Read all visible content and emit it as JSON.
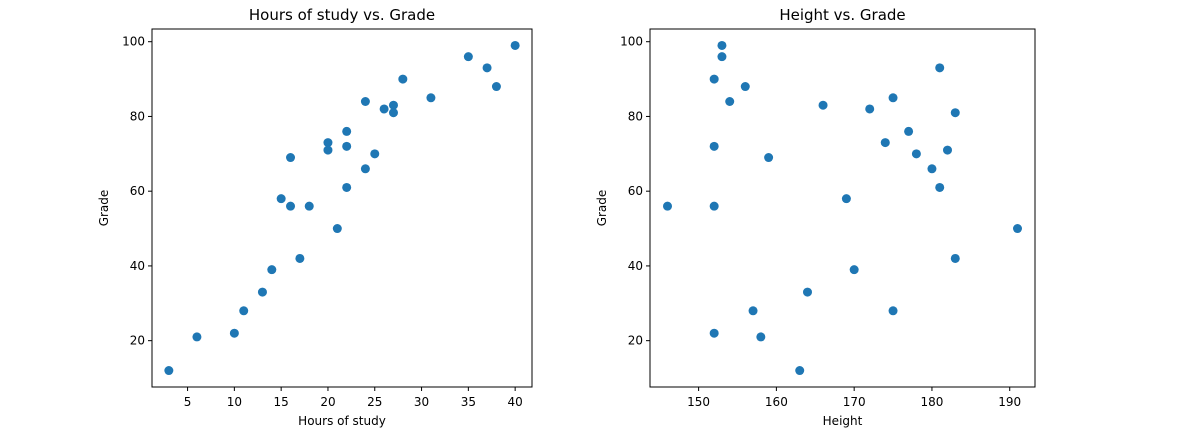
{
  "chart_data": [
    {
      "type": "scatter",
      "title": "Hours of study vs. Grade",
      "xlabel": "Hours of study",
      "ylabel": "Grade",
      "xlim": [
        1.2,
        41.8
      ],
      "ylim": [
        7.6,
        103.4
      ],
      "xticks": [
        5,
        10,
        15,
        20,
        25,
        30,
        35,
        40
      ],
      "yticks": [
        20,
        40,
        60,
        80,
        100
      ],
      "grid": false,
      "color": "#1f77b4",
      "points": [
        [
          3,
          12
        ],
        [
          6,
          21
        ],
        [
          10,
          22
        ],
        [
          11,
          28
        ],
        [
          13,
          33
        ],
        [
          14,
          39
        ],
        [
          15,
          58
        ],
        [
          16,
          56
        ],
        [
          16,
          69
        ],
        [
          17,
          42
        ],
        [
          18,
          56
        ],
        [
          20,
          73
        ],
        [
          20,
          71
        ],
        [
          21,
          50
        ],
        [
          22,
          76
        ],
        [
          22,
          72
        ],
        [
          22,
          61
        ],
        [
          24,
          84
        ],
        [
          24,
          66
        ],
        [
          25,
          70
        ],
        [
          26,
          82
        ],
        [
          27,
          83
        ],
        [
          27,
          81
        ],
        [
          28,
          90
        ],
        [
          31,
          85
        ],
        [
          35,
          96
        ],
        [
          37,
          93
        ],
        [
          38,
          88
        ],
        [
          40,
          99
        ]
      ]
    },
    {
      "type": "scatter",
      "title": "Height vs. Grade",
      "xlabel": "Height",
      "ylabel": "Grade",
      "xlim": [
        143.75,
        193.25
      ],
      "ylim": [
        7.6,
        103.4
      ],
      "xticks": [
        150,
        160,
        170,
        180,
        190
      ],
      "yticks": [
        20,
        40,
        60,
        80,
        100
      ],
      "grid": false,
      "color": "#1f77b4",
      "points": [
        [
          146,
          56
        ],
        [
          152,
          90
        ],
        [
          152,
          72
        ],
        [
          152,
          56
        ],
        [
          152,
          22
        ],
        [
          153,
          99
        ],
        [
          153,
          96
        ],
        [
          154,
          84
        ],
        [
          156,
          88
        ],
        [
          157,
          28
        ],
        [
          158,
          21
        ],
        [
          159,
          69
        ],
        [
          163,
          12
        ],
        [
          164,
          33
        ],
        [
          166,
          83
        ],
        [
          169,
          58
        ],
        [
          170,
          39
        ],
        [
          172,
          82
        ],
        [
          174,
          73
        ],
        [
          175,
          85
        ],
        [
          175,
          28
        ],
        [
          177,
          76
        ],
        [
          178,
          70
        ],
        [
          180,
          66
        ],
        [
          181,
          93
        ],
        [
          181,
          61
        ],
        [
          182,
          71
        ],
        [
          183,
          81
        ],
        [
          183,
          42
        ],
        [
          191,
          50
        ]
      ]
    }
  ]
}
